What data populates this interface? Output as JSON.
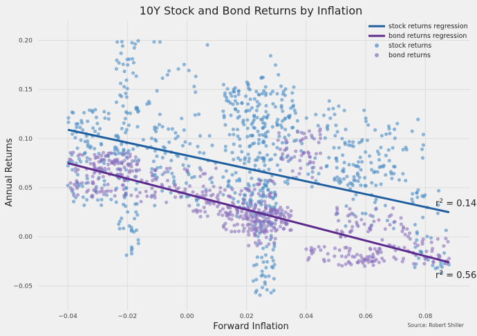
{
  "chart_data": {
    "type": "scatter",
    "title": "10Y Stock and Bond Returns by Inflation",
    "xlabel": "Forward Inflation",
    "ylabel": "Annual Returns",
    "xlim": [
      -0.05,
      0.095
    ],
    "ylim": [
      -0.075,
      0.22
    ],
    "x_ticks": [
      -0.04,
      -0.02,
      0.0,
      0.02,
      0.04,
      0.06,
      0.08
    ],
    "x_tick_labels": [
      "−0.04",
      "−0.02",
      "0.00",
      "0.02",
      "0.04",
      "0.06",
      "0.08"
    ],
    "y_ticks": [
      -0.05,
      0.0,
      0.05,
      0.1,
      0.15,
      0.2
    ],
    "y_tick_labels": [
      "−0.05",
      "0.00",
      "0.05",
      "0.10",
      "0.15",
      "0.20"
    ],
    "grid": true,
    "legend_position": "top-right",
    "source": "Source: Robert Shiller",
    "colors": {
      "stock": "#1f5fa0",
      "bond": "#5b2a8c",
      "stock_points": "#4a8cc4",
      "bond_points": "#8a6fbd"
    },
    "series": [
      {
        "name": "stock returns regression",
        "kind": "line",
        "x": [
          -0.04,
          0.088
        ],
        "y": [
          0.109,
          0.025
        ]
      },
      {
        "name": "bond returns regression",
        "kind": "line",
        "x": [
          -0.04,
          0.088
        ],
        "y": [
          0.075,
          -0.026
        ]
      },
      {
        "name": "stock returns",
        "kind": "scatter",
        "clusters": [
          {
            "x": [
              -0.04,
              -0.02
            ],
            "y": [
              0.03,
              0.13
            ],
            "n": 120
          },
          {
            "x": [
              -0.024,
              -0.016
            ],
            "y": [
              -0.02,
              0.2
            ],
            "n": 90
          },
          {
            "x": [
              -0.018,
              0.008
            ],
            "y": [
              0.06,
              0.2
            ],
            "n": 40
          },
          {
            "x": [
              -0.012,
              0.01
            ],
            "y": [
              0.03,
              0.11
            ],
            "n": 60
          },
          {
            "x": [
              0.012,
              0.036
            ],
            "y": [
              0.1,
              0.155
            ],
            "n": 110
          },
          {
            "x": [
              0.012,
              0.03
            ],
            "y": [
              0.02,
              0.1
            ],
            "n": 90
          },
          {
            "x": [
              0.022,
              0.03
            ],
            "y": [
              -0.06,
              0.06
            ],
            "n": 70
          },
          {
            "x": [
              0.02,
              0.032
            ],
            "y": [
              0.02,
              0.185
            ],
            "n": 60
          },
          {
            "x": [
              0.032,
              0.06
            ],
            "y": [
              0.05,
              0.14
            ],
            "n": 90
          },
          {
            "x": [
              0.05,
              0.07
            ],
            "y": [
              0.0,
              0.1
            ],
            "n": 60
          },
          {
            "x": [
              0.06,
              0.08
            ],
            "y": [
              0.03,
              0.12
            ],
            "n": 40
          },
          {
            "x": [
              0.075,
              0.088
            ],
            "y": [
              -0.04,
              0.05
            ],
            "n": 35
          }
        ]
      },
      {
        "name": "bond returns",
        "kind": "scatter",
        "clusters": [
          {
            "x": [
              -0.04,
              -0.02
            ],
            "y": [
              0.04,
              0.086
            ],
            "n": 80
          },
          {
            "x": [
              -0.032,
              -0.016
            ],
            "y": [
              0.06,
              0.086
            ],
            "n": 50
          },
          {
            "x": [
              -0.02,
              0.01
            ],
            "y": [
              0.035,
              0.07
            ],
            "n": 60
          },
          {
            "x": [
              0.0,
              0.02
            ],
            "y": [
              0.02,
              0.05
            ],
            "n": 50
          },
          {
            "x": [
              0.012,
              0.035
            ],
            "y": [
              0.005,
              0.03
            ],
            "n": 140
          },
          {
            "x": [
              0.02,
              0.03
            ],
            "y": [
              -0.01,
              0.06
            ],
            "n": 60
          },
          {
            "x": [
              0.03,
              0.045
            ],
            "y": [
              0.06,
              0.11
            ],
            "n": 50
          },
          {
            "x": [
              0.04,
              0.065
            ],
            "y": [
              -0.03,
              -0.01
            ],
            "n": 60
          },
          {
            "x": [
              0.05,
              0.075
            ],
            "y": [
              0.0,
              0.03
            ],
            "n": 50
          },
          {
            "x": [
              0.06,
              0.088
            ],
            "y": [
              -0.03,
              0.0
            ],
            "n": 60
          }
        ]
      }
    ],
    "annotations": [
      {
        "text": "0.14",
        "x": 0.088,
        "y": 0.025
      },
      {
        "text": "0.56",
        "x": 0.088,
        "y": -0.045
      }
    ]
  }
}
